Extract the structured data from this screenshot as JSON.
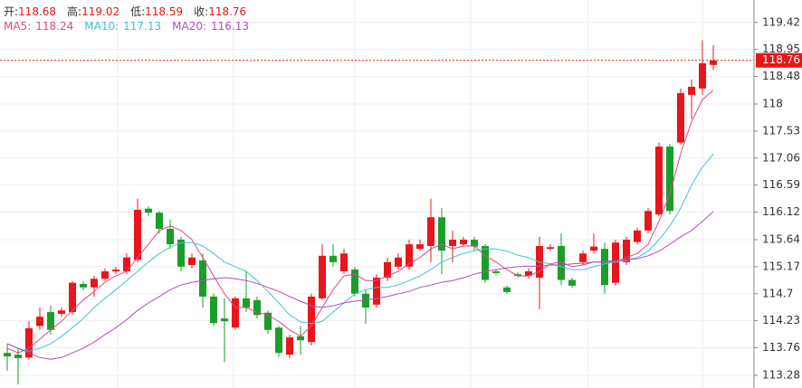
{
  "chart_data": {
    "type": "candlestick",
    "ohlc_labels": [
      "开:",
      "高:",
      "低:",
      "收:"
    ],
    "up_color": "#e8161b",
    "down_color": "#1a9e2a",
    "open": [
      113.67,
      113.64,
      113.59,
      114.14,
      114.38,
      114.35,
      114.38,
      114.87,
      114.81,
      114.96,
      115.09,
      115.09,
      115.29,
      116.18,
      116.11,
      115.83,
      115.64,
      115.2,
      115.28,
      114.65,
      114.27,
      114.11,
      114.62,
      114.59,
      114.37,
      114.11,
      113.64,
      113.96,
      113.86,
      114.62,
      115.36,
      115.09,
      115.12,
      114.7,
      114.51,
      114.98,
      115.17,
      115.17,
      115.48,
      115.53,
      116.03,
      115.53,
      115.56,
      115.64,
      115.53,
      115.09,
      114.81,
      115.04,
      115.01,
      114.98,
      115.48,
      115.53,
      114.94,
      115.25,
      115.45,
      115.48,
      114.89,
      115.25,
      115.6,
      115.8,
      116.08,
      117.26,
      117.33,
      118.16,
      118.27,
      118.68
    ],
    "high": [
      113.83,
      113.75,
      114.22,
      114.46,
      114.49,
      114.46,
      114.92,
      114.92,
      115.01,
      115.14,
      115.17,
      115.4,
      116.35,
      116.22,
      116.14,
      115.99,
      115.69,
      115.4,
      115.4,
      114.7,
      114.62,
      114.65,
      115.09,
      114.65,
      114.41,
      114.14,
      113.99,
      114.14,
      114.7,
      115.56,
      115.56,
      115.48,
      115.17,
      114.77,
      115.04,
      115.33,
      115.4,
      115.64,
      115.64,
      116.35,
      116.19,
      115.8,
      115.69,
      115.69,
      115.56,
      115.12,
      114.84,
      115.07,
      115.14,
      115.69,
      115.56,
      115.75,
      114.98,
      115.45,
      115.75,
      115.59,
      115.64,
      115.69,
      115.85,
      116.19,
      117.33,
      117.3,
      118.27,
      118.43,
      119.11,
      119.02
    ],
    "low": [
      113.36,
      113.12,
      113.55,
      114.07,
      113.99,
      114.3,
      114.33,
      114.76,
      114.65,
      114.92,
      115.04,
      115.04,
      115.25,
      116.05,
      115.75,
      115.48,
      115.09,
      115.14,
      114.46,
      114.14,
      113.51,
      114.07,
      114.38,
      114.27,
      114.0,
      113.6,
      113.58,
      113.64,
      113.8,
      114.59,
      115.17,
      115.04,
      114.65,
      114.18,
      114.46,
      114.92,
      115.12,
      115.12,
      115.45,
      115.25,
      115.04,
      115.25,
      115.52,
      115.45,
      114.89,
      115.02,
      114.7,
      114.98,
      114.96,
      114.43,
      115.45,
      114.85,
      114.8,
      115.2,
      115.4,
      114.7,
      114.84,
      115.2,
      115.56,
      115.75,
      116.05,
      116.08,
      117.29,
      117.74,
      118.16,
      118.59
    ],
    "close": [
      113.61,
      113.58,
      114.1,
      114.3,
      114.07,
      114.41,
      114.89,
      114.81,
      114.96,
      115.09,
      115.12,
      115.33,
      116.16,
      116.11,
      115.83,
      115.56,
      115.17,
      115.33,
      114.65,
      114.19,
      114.22,
      114.62,
      114.46,
      114.33,
      114.07,
      113.67,
      113.94,
      113.89,
      114.65,
      115.36,
      115.25,
      115.4,
      114.7,
      114.46,
      114.98,
      115.25,
      115.33,
      115.56,
      115.56,
      116.03,
      115.45,
      115.64,
      115.64,
      115.52,
      114.94,
      115.06,
      114.73,
      115.01,
      115.09,
      115.53,
      115.51,
      114.94,
      114.84,
      115.4,
      115.52,
      114.85,
      115.59,
      115.64,
      115.8,
      116.14,
      117.26,
      116.14,
      118.19,
      118.3,
      118.71,
      118.76
    ],
    "series": [
      {
        "name": "MA5:",
        "color": "#e0488c",
        "values": [
          113.75,
          113.67,
          113.75,
          113.91,
          114.07,
          114.22,
          114.41,
          114.59,
          114.74,
          114.9,
          115.01,
          115.09,
          115.33,
          115.56,
          115.8,
          115.88,
          115.8,
          115.64,
          115.33,
          115.01,
          114.7,
          114.46,
          114.46,
          114.38,
          114.33,
          114.22,
          114.07,
          113.96,
          114.14,
          114.46,
          114.77,
          115.01,
          115.04,
          114.93,
          114.93,
          115.01,
          115.09,
          115.22,
          115.33,
          115.48,
          115.56,
          115.48,
          115.53,
          115.53,
          115.36,
          115.25,
          115.12,
          115.01,
          115.01,
          115.09,
          115.22,
          115.25,
          115.17,
          115.2,
          115.25,
          115.25,
          115.25,
          115.33,
          115.4,
          115.56,
          115.96,
          116.43,
          117.14,
          117.69,
          118.08,
          118.24
        ]
      },
      {
        "name": "MA10:",
        "color": "#3ec3d3",
        "values": [
          113.83,
          113.75,
          113.7,
          113.75,
          113.83,
          113.96,
          114.11,
          114.27,
          114.46,
          114.62,
          114.77,
          114.93,
          115.09,
          115.25,
          115.4,
          115.51,
          115.59,
          115.59,
          115.53,
          115.4,
          115.25,
          115.17,
          115.09,
          114.93,
          114.74,
          114.54,
          114.33,
          114.21,
          114.18,
          114.22,
          114.38,
          114.54,
          114.7,
          114.77,
          114.81,
          114.81,
          114.85,
          114.93,
          115.01,
          115.12,
          115.25,
          115.33,
          115.4,
          115.45,
          115.48,
          115.48,
          115.44,
          115.37,
          115.33,
          115.25,
          115.22,
          115.17,
          115.12,
          115.12,
          115.17,
          115.22,
          115.25,
          115.28,
          115.33,
          115.44,
          115.64,
          115.88,
          116.19,
          116.59,
          116.9,
          117.13
        ]
      },
      {
        "name": "MA20:",
        "color": "#b04dbf",
        "values": [
          113.83,
          113.75,
          113.67,
          113.59,
          113.56,
          113.59,
          113.67,
          113.75,
          113.86,
          113.99,
          114.11,
          114.25,
          114.41,
          114.54,
          114.65,
          114.77,
          114.85,
          114.9,
          114.93,
          114.96,
          114.98,
          114.96,
          114.93,
          114.88,
          114.81,
          114.74,
          114.65,
          114.57,
          114.49,
          114.46,
          114.49,
          114.54,
          114.57,
          114.59,
          114.62,
          114.65,
          114.7,
          114.74,
          114.81,
          114.85,
          114.9,
          114.93,
          114.98,
          115.04,
          115.09,
          115.12,
          115.15,
          115.17,
          115.18,
          115.18,
          115.2,
          115.2,
          115.22,
          115.23,
          115.25,
          115.26,
          115.28,
          115.29,
          115.31,
          115.36,
          115.44,
          115.56,
          115.69,
          115.8,
          115.96,
          116.13
        ]
      }
    ],
    "ylim": [
      113.06,
      119.81
    ],
    "yticks": [
      113.28,
      113.76,
      114.23,
      114.7,
      115.17,
      115.64,
      116.12,
      116.59,
      117.06,
      117.53,
      118.0,
      118.48,
      118.95,
      119.42
    ],
    "grid": true,
    "last_price_line": true
  }
}
